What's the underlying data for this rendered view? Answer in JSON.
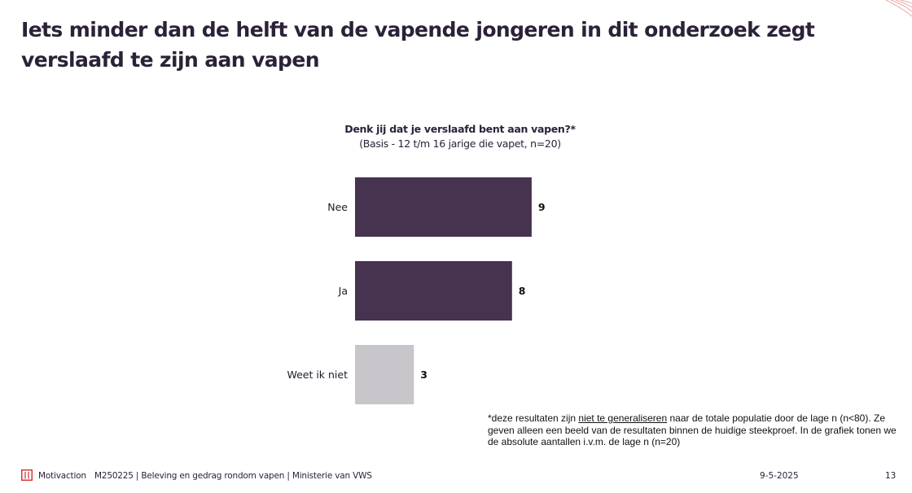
{
  "slide": {
    "title": "Iets minder dan de helft van de vapende jongeren in dit onderzoek zegt verslaafd te zijn aan vapen"
  },
  "chart_data": {
    "type": "bar",
    "orientation": "horizontal",
    "title": "Denk jij dat je verslaafd bent aan vapen?*",
    "subtitle": "(Basis - 12 t/m 16 jarige die vapet, n=20)",
    "categories": [
      "Nee",
      "Ja",
      "Weet ik niet"
    ],
    "values": [
      9,
      8,
      3
    ],
    "colors": [
      "#463350",
      "#463350",
      "#c8c6ca"
    ],
    "xlim": [
      0,
      20
    ],
    "grid": false,
    "legend": "none"
  },
  "footnote": {
    "before": "*deze resultaten zijn ",
    "underlined": "niet te generaliseren",
    "after": " naar de totale populatie door de lage n (n<80). Ze geven alleen een beeld van de resultaten binnen de huidige steekproef. In de grafiek tonen we de absolute aantallen i.v.m. de lage n (n=20)"
  },
  "footer": {
    "logo_icon": "motivaction-logo-icon",
    "brand": "Motivaction",
    "project": "M250225 | Beleving en gedrag rondom vapen | Ministerie van VWS",
    "date": "9-5-2025",
    "page": "13"
  },
  "colors": {
    "accent": "#d63a3a",
    "bar_primary": "#463350",
    "bar_secondary": "#c8c6ca",
    "text": "#2b2238"
  }
}
